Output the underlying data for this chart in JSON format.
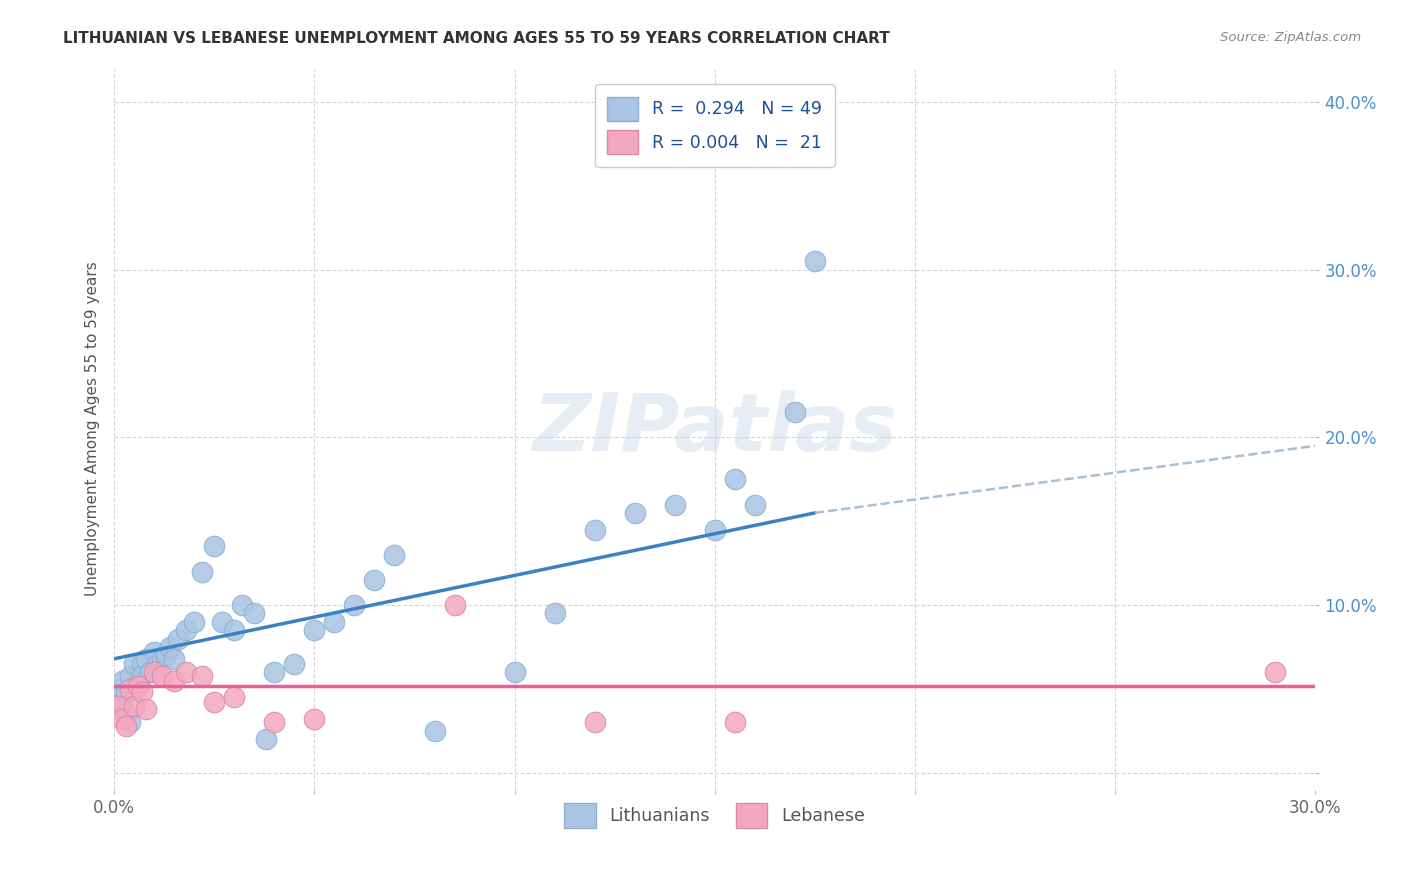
{
  "title": "LITHUANIAN VS LEBANESE UNEMPLOYMENT AMONG AGES 55 TO 59 YEARS CORRELATION CHART",
  "source": "Source: ZipAtlas.com",
  "ylabel": "Unemployment Among Ages 55 to 59 years",
  "xlabel": "",
  "xlim": [
    0.0,
    0.3
  ],
  "ylim": [
    -0.01,
    0.42
  ],
  "xticks": [
    0.0,
    0.05,
    0.1,
    0.15,
    0.2,
    0.25,
    0.3
  ],
  "yticks": [
    0.0,
    0.1,
    0.2,
    0.3,
    0.4
  ],
  "color_lith": "#aac4e2",
  "color_leb": "#f4a8c0",
  "line_color_lith": "#3b82c4",
  "line_color_leb": "#e8609a",
  "dash_color": "#a0b8d0",
  "background_color": "#ffffff",
  "grid_color": "#cccccc",
  "lith_x": [
    0.001,
    0.001,
    0.002,
    0.002,
    0.003,
    0.003,
    0.004,
    0.004,
    0.005,
    0.005,
    0.006,
    0.007,
    0.007,
    0.008,
    0.009,
    0.01,
    0.011,
    0.012,
    0.013,
    0.014,
    0.015,
    0.016,
    0.018,
    0.02,
    0.022,
    0.025,
    0.027,
    0.03,
    0.032,
    0.035,
    0.038,
    0.04,
    0.045,
    0.05,
    0.055,
    0.06,
    0.065,
    0.07,
    0.08,
    0.1,
    0.11,
    0.12,
    0.13,
    0.14,
    0.15,
    0.155,
    0.16,
    0.17,
    0.175
  ],
  "lith_y": [
    0.038,
    0.05,
    0.042,
    0.055,
    0.035,
    0.048,
    0.03,
    0.058,
    0.05,
    0.065,
    0.052,
    0.065,
    0.058,
    0.068,
    0.06,
    0.072,
    0.065,
    0.068,
    0.07,
    0.075,
    0.068,
    0.08,
    0.085,
    0.09,
    0.12,
    0.135,
    0.09,
    0.085,
    0.1,
    0.095,
    0.02,
    0.06,
    0.065,
    0.085,
    0.09,
    0.1,
    0.115,
    0.13,
    0.025,
    0.06,
    0.095,
    0.145,
    0.155,
    0.16,
    0.145,
    0.175,
    0.16,
    0.215,
    0.305
  ],
  "leb_x": [
    0.001,
    0.002,
    0.003,
    0.004,
    0.005,
    0.006,
    0.007,
    0.008,
    0.01,
    0.012,
    0.015,
    0.018,
    0.022,
    0.025,
    0.03,
    0.04,
    0.05,
    0.085,
    0.12,
    0.155,
    0.29
  ],
  "leb_y": [
    0.04,
    0.032,
    0.028,
    0.05,
    0.04,
    0.052,
    0.048,
    0.038,
    0.06,
    0.058,
    0.055,
    0.06,
    0.058,
    0.042,
    0.045,
    0.03,
    0.032,
    0.1,
    0.03,
    0.03,
    0.06
  ],
  "trendline_lith_x0": 0.0,
  "trendline_lith_y0": 0.068,
  "trendline_lith_x1": 0.175,
  "trendline_lith_y1": 0.155,
  "trendline_dash_x0": 0.175,
  "trendline_dash_y0": 0.155,
  "trendline_dash_x1": 0.3,
  "trendline_dash_y1": 0.195,
  "trendline_leb_y": 0.052
}
